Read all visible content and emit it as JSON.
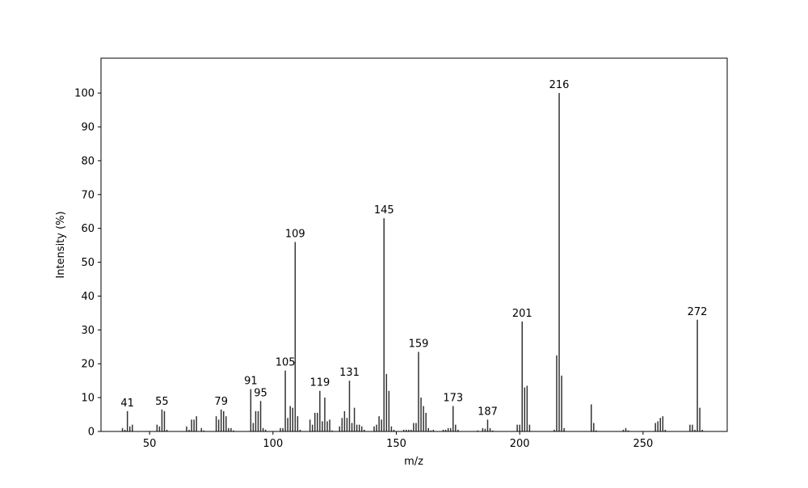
{
  "chart_data": {
    "type": "stem",
    "x_label": "m/z",
    "y_label": "Intensity (%)",
    "x": [
      39,
      40,
      41,
      42,
      43,
      53,
      54,
      55,
      56,
      57,
      65,
      66,
      67,
      68,
      69,
      71,
      72,
      77,
      78,
      79,
      80,
      81,
      82,
      83,
      84,
      91,
      92,
      93,
      94,
      95,
      96,
      97,
      103,
      104,
      105,
      106,
      107,
      108,
      109,
      110,
      111,
      115,
      116,
      117,
      118,
      119,
      120,
      121,
      122,
      123,
      124,
      127,
      128,
      129,
      130,
      131,
      132,
      133,
      134,
      135,
      136,
      137,
      141,
      142,
      143,
      144,
      145,
      146,
      147,
      148,
      149,
      153,
      154,
      155,
      156,
      157,
      158,
      159,
      160,
      161,
      162,
      163,
      164,
      165,
      169,
      170,
      171,
      172,
      173,
      174,
      175,
      183,
      185,
      186,
      187,
      188,
      189,
      199,
      200,
      201,
      202,
      203,
      204,
      214,
      215,
      216,
      217,
      218,
      229,
      230,
      231,
      242,
      243,
      244,
      255,
      256,
      257,
      258,
      259,
      269,
      270,
      271,
      272,
      273,
      274
    ],
    "values": [
      1,
      0.5,
      6,
      1.5,
      2,
      2,
      1.5,
      6.5,
      6,
      0.5,
      1.5,
      0.5,
      3.5,
      3.5,
      4.5,
      1,
      0.3,
      4.5,
      3.5,
      6.5,
      6,
      4.5,
      1,
      1,
      0.3,
      12.5,
      2.5,
      6,
      6,
      9,
      1,
      0.5,
      1,
      1,
      18,
      4,
      7.5,
      7,
      56,
      4.5,
      0.5,
      3.5,
      2,
      5.5,
      5.5,
      12,
      3,
      10,
      3,
      3.5,
      0.3,
      1.5,
      4,
      6,
      4,
      15,
      2.5,
      7,
      2,
      2,
      1.5,
      0.5,
      1.5,
      2,
      4.5,
      3.5,
      63,
      17,
      12,
      1.5,
      0.5,
      0.5,
      0.5,
      0.5,
      0.5,
      2.5,
      2.5,
      23.5,
      10,
      7.5,
      5.5,
      1,
      0.3,
      0.5,
      0.5,
      0.5,
      1,
      1,
      7.5,
      2,
      0.5,
      0.3,
      1,
      0.8,
      3.5,
      1,
      0.3,
      2,
      2,
      32.5,
      13,
      13.5,
      2,
      0.5,
      22.5,
      100,
      16.5,
      1,
      8,
      2.5,
      0.3,
      0.5,
      1,
      0.3,
      2.5,
      3,
      4,
      4.5,
      0.5,
      2,
      2,
      0.5,
      33,
      7,
      0.5
    ],
    "peak_labels": [
      41,
      55,
      79,
      91,
      95,
      105,
      109,
      119,
      131,
      145,
      159,
      173,
      187,
      201,
      216,
      272
    ],
    "color": "#000000",
    "xlim": [
      30.3,
      284.1
    ],
    "ylim": [
      0,
      110.3
    ],
    "xticks": [
      50,
      100,
      150,
      200,
      250
    ],
    "yticks": [
      0,
      10,
      20,
      30,
      40,
      50,
      60,
      70,
      80,
      90,
      100
    ]
  }
}
